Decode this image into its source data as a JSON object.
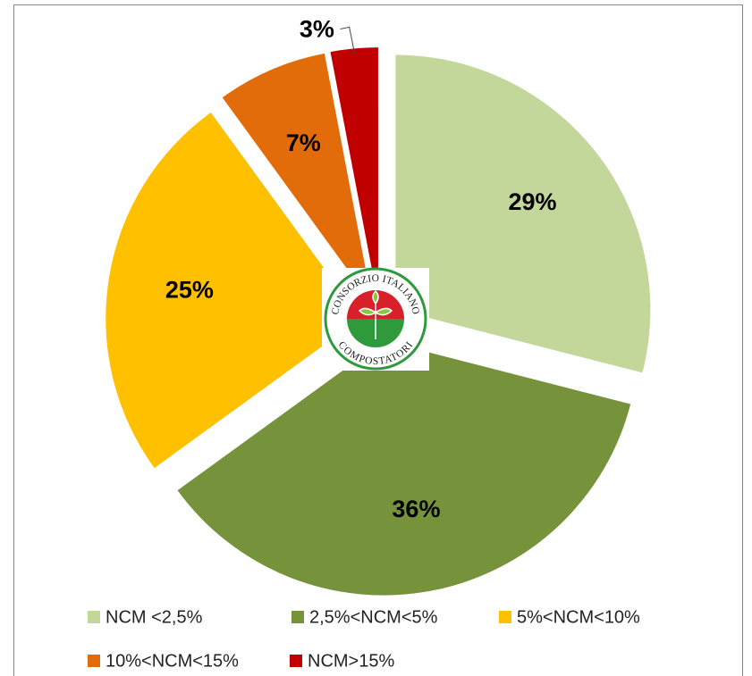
{
  "chart_data": {
    "type": "pie",
    "categories": [
      "NCM <2,5%",
      "2,5%<NCM<5%",
      "5%<NCM<10%",
      "10%<NCM<15%",
      "NCM>15%"
    ],
    "values": [
      29,
      36,
      25,
      7,
      3
    ],
    "value_labels": [
      "29%",
      "36%",
      "25%",
      "7%",
      "3%"
    ],
    "colors": [
      "#c4d79b",
      "#76933c",
      "#ffc000",
      "#e26b0a",
      "#c00000"
    ],
    "legend": "bottom"
  },
  "logo": {
    "top": "CONSORZIO ITALIANO",
    "bottom": "COMPOSTATORI"
  }
}
